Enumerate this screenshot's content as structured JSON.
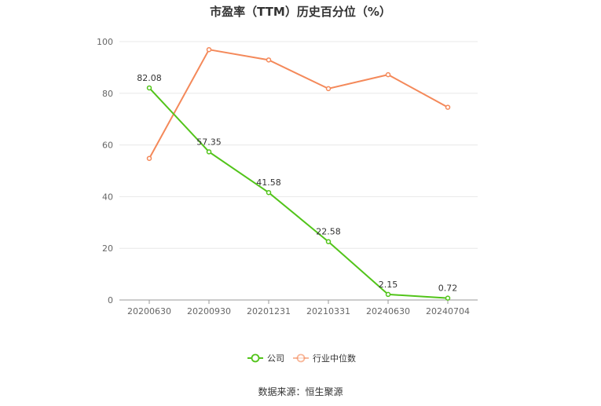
{
  "chart_data": {
    "type": "line",
    "title": "市盈率（TTM）历史百分位（%）",
    "categories": [
      "20200630",
      "20200930",
      "20201231",
      "20210331",
      "20240630",
      "20240704"
    ],
    "ylim": [
      0,
      100
    ],
    "y_ticks": [
      "0",
      "20",
      "40",
      "60",
      "80",
      "100"
    ],
    "grid": true,
    "legend_position": "bottom",
    "series": [
      {
        "name": "公司",
        "color": "#52c41a",
        "values": [
          82.08,
          57.35,
          41.58,
          22.58,
          2.15,
          0.72
        ],
        "labels": [
          "82.08",
          "57.35",
          "41.58",
          "22.58",
          "2.15",
          "0.72"
        ]
      },
      {
        "name": "行业中位数",
        "color": "#f4895a",
        "values": [
          54.8,
          96.9,
          92.9,
          81.8,
          87.2,
          74.6
        ]
      }
    ]
  },
  "source": "数据来源：恒生聚源"
}
